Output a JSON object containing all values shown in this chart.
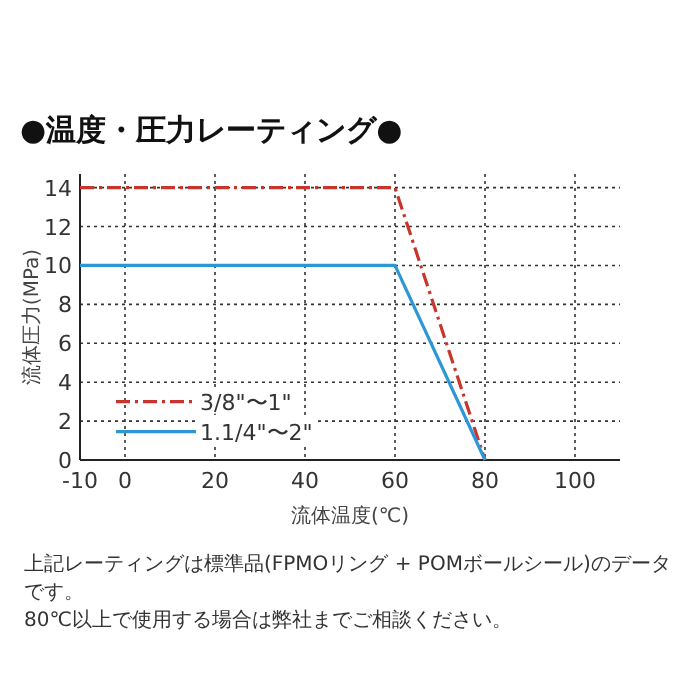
{
  "chart_data": {
    "type": "line",
    "title": "●温度・圧力レーティング●",
    "xlabel": "流体温度(℃)",
    "ylabel": "流体圧力(MPa)",
    "x": [
      -10,
      60,
      80
    ],
    "series": [
      {
        "name": "3/8\"〜1\"",
        "color": "#c8352b",
        "line_style": "dashdot",
        "values": [
          14,
          14,
          0
        ]
      },
      {
        "name": "1.1/4\"〜2\"",
        "color": "#2c97d5",
        "line_style": "solid",
        "values": [
          10,
          10,
          0
        ]
      }
    ],
    "xlim": [
      -10,
      110
    ],
    "xticks": [
      -10,
      0,
      20,
      40,
      60,
      80,
      100
    ],
    "ylim": [
      0,
      14.7
    ],
    "yticks": [
      0,
      2,
      4,
      6,
      8,
      10,
      12,
      14
    ],
    "grid": true,
    "legend": "bottom",
    "marker": "none",
    "annotations": [
      "上記レーティングは標準品(FPMOリング + POMボールシール)のデータです。",
      "80℃以上で使用する場合は弊社までご相談ください。"
    ]
  }
}
